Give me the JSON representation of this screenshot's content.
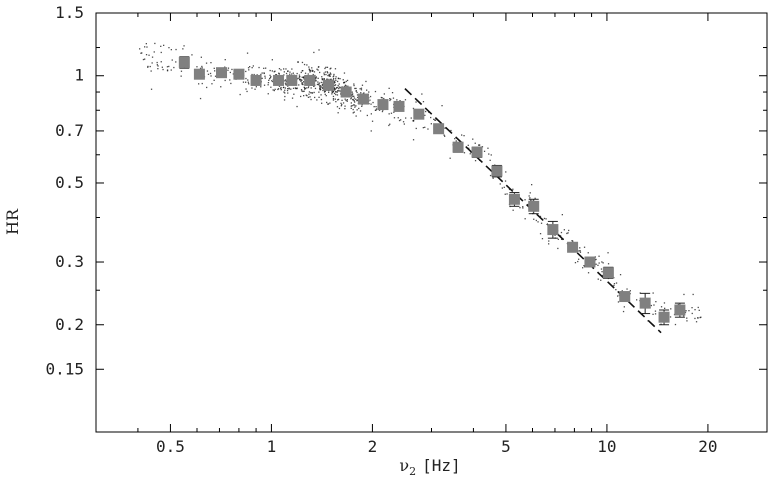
{
  "chart_data": {
    "type": "scatter",
    "xscale": "log",
    "yscale": "log",
    "xlim": [
      0.3,
      30
    ],
    "ylim": [
      0.1,
      1.5
    ],
    "xlabel_greek": "ν",
    "xlabel_sub": "2",
    "xlabel_unit": "[Hz]",
    "ylabel": "HR",
    "xticks": [
      {
        "value": 0.5,
        "label": "0.5"
      },
      {
        "value": 1,
        "label": "1"
      },
      {
        "value": 2,
        "label": "2"
      },
      {
        "value": 5,
        "label": "5"
      },
      {
        "value": 10,
        "label": "10"
      },
      {
        "value": 20,
        "label": "20"
      }
    ],
    "yticks": [
      {
        "value": 1.5,
        "label": "1.5"
      },
      {
        "value": 1,
        "label": "1"
      },
      {
        "value": 0.7,
        "label": "0.7"
      },
      {
        "value": 0.5,
        "label": "0.5"
      },
      {
        "value": 0.3,
        "label": "0.3"
      },
      {
        "value": 0.2,
        "label": "0.2"
      },
      {
        "value": 0.15,
        "label": "0.15"
      }
    ],
    "binned": {
      "x": [
        0.55,
        0.61,
        0.71,
        0.8,
        0.9,
        1.05,
        1.15,
        1.3,
        1.48,
        1.67,
        1.88,
        2.15,
        2.4,
        2.75,
        3.15,
        3.6,
        4.1,
        4.7,
        5.3,
        6.05,
        6.9,
        7.9,
        8.9,
        10.1,
        11.3,
        13.0,
        14.8,
        16.5
      ],
      "y": [
        1.09,
        1.01,
        1.02,
        1.01,
        0.97,
        0.97,
        0.97,
        0.97,
        0.94,
        0.9,
        0.86,
        0.83,
        0.82,
        0.78,
        0.71,
        0.63,
        0.61,
        0.54,
        0.45,
        0.43,
        0.37,
        0.33,
        0.3,
        0.28,
        0.24,
        0.23,
        0.21,
        0.22
      ],
      "err": [
        0.04,
        0.0,
        0.02,
        0.0,
        0.0,
        0.02,
        0.0,
        0.0,
        0.02,
        0.0,
        0.0,
        0.0,
        0.02,
        0.02,
        0.0,
        0.02,
        0.02,
        0.02,
        0.02,
        0.02,
        0.02,
        0.0,
        0.0,
        0.01,
        0.0,
        0.015,
        0.01,
        0.01
      ],
      "marker": "square",
      "color": "#808080"
    },
    "fit_line": {
      "style": "dashed",
      "color": "#111111",
      "x": [
        2.5,
        14.5
      ],
      "y": [
        0.92,
        0.19
      ]
    },
    "scatter_color": "#111111"
  }
}
